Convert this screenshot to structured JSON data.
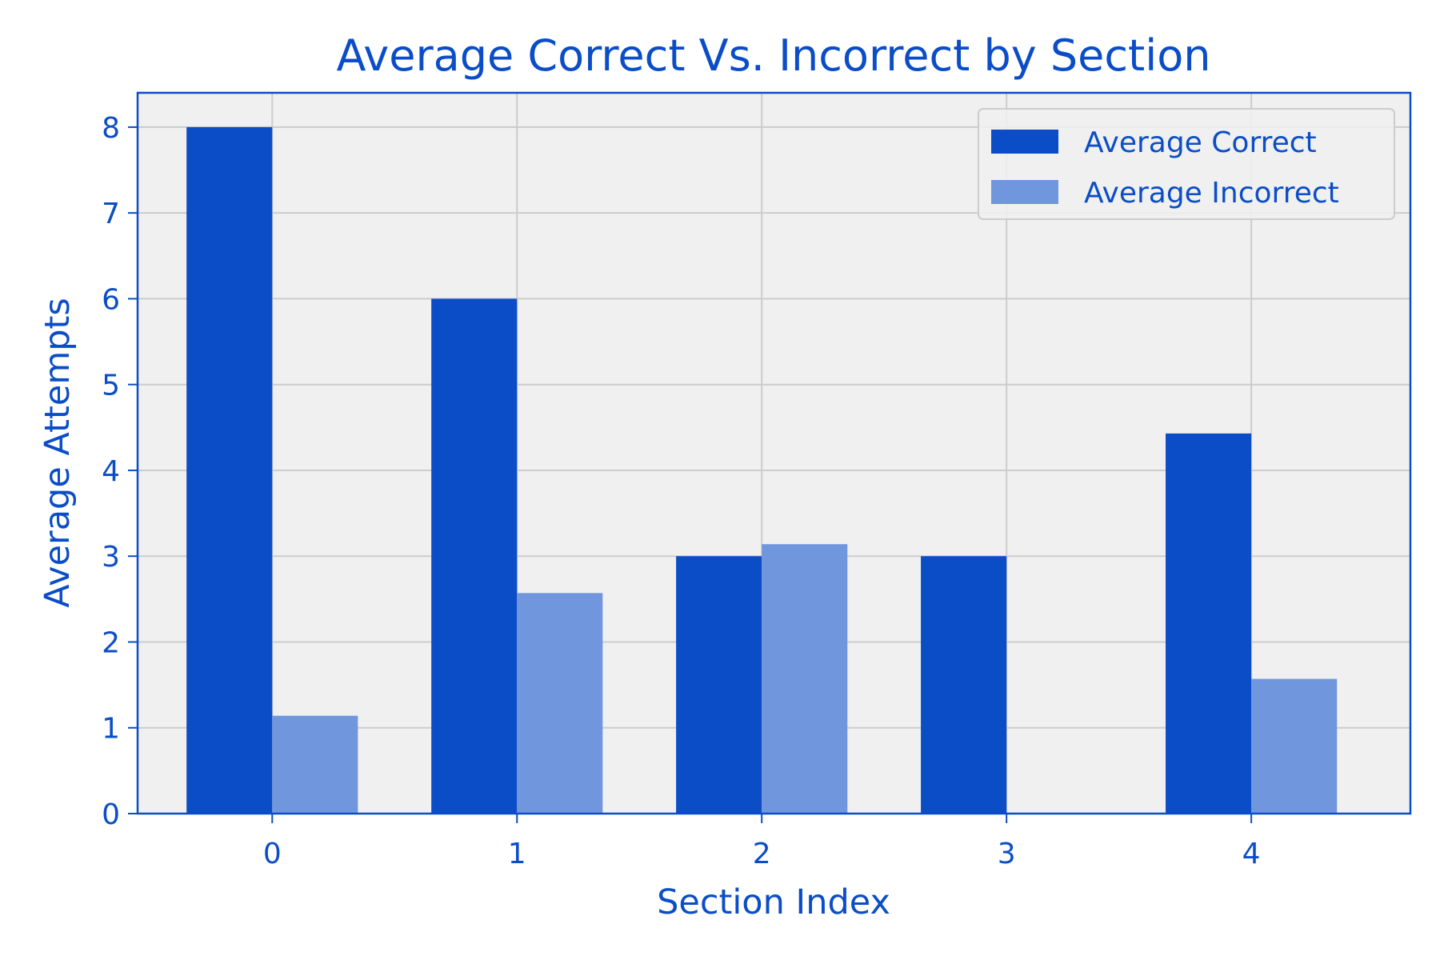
{
  "chart_data": {
    "type": "bar",
    "title": "Average Correct Vs. Incorrect by Section",
    "xlabel": "Section Index",
    "ylabel": "Average Attempts",
    "categories": [
      "0",
      "1",
      "2",
      "3",
      "4"
    ],
    "series": [
      {
        "name": "Average Correct",
        "values": [
          8.0,
          6.0,
          3.0,
          3.0,
          4.43
        ],
        "color": "#0b4dc7"
      },
      {
        "name": "Average Incorrect",
        "values": [
          1.14,
          2.57,
          3.14,
          0.0,
          1.57
        ],
        "color": "#7096de"
      }
    ],
    "ylim": [
      0,
      8.4
    ],
    "yticks": [
      0,
      1,
      2,
      3,
      4,
      5,
      6,
      7,
      8
    ],
    "grid": true,
    "legend_position": "top-right",
    "colors": {
      "text": "#0b4dc7",
      "axes": "#0b4dc7",
      "plot_bg": "#f0f0f0",
      "grid": "#cccccc"
    }
  }
}
